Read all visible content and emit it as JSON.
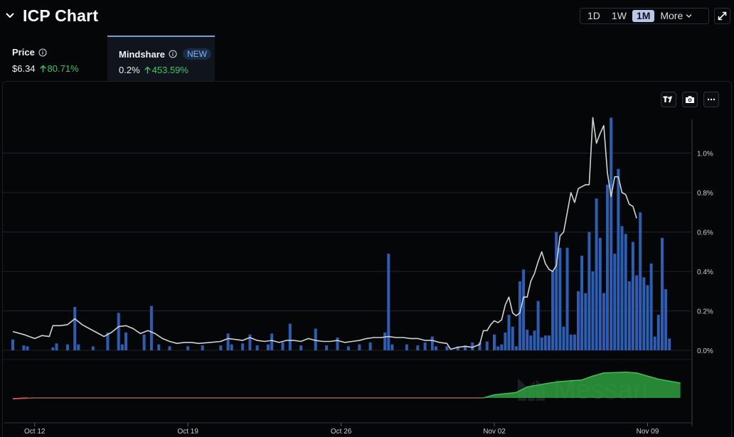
{
  "header": {
    "title": "ICP Chart",
    "ranges": [
      "1D",
      "1W",
      "1M"
    ],
    "active_range": "1M",
    "more_label": "More"
  },
  "tabs": [
    {
      "label": "Price",
      "value": "$6.34",
      "change": "80.71%"
    },
    {
      "label": "Mindshare",
      "badge": "NEW",
      "value": "0.2%",
      "change": "453.59%"
    }
  ],
  "watermark": "Messari",
  "colors": {
    "bars": "#2c5fb3",
    "line": "#d2d2d2",
    "positive": "#3cc46a",
    "area": "#2f9e3f",
    "negative": "#d9534f"
  },
  "icons": [
    "chevron-down-icon",
    "info-icon",
    "expand-icon",
    "tradingview-icon",
    "camera-icon",
    "more-icon"
  ],
  "chart_data": {
    "type": "bar",
    "y_axis": {
      "min": 0,
      "max": 1.2,
      "ticks": [
        0,
        0.2,
        0.4,
        0.6,
        0.8,
        1.0
      ],
      "tick_labels": [
        "0.0%",
        "0.2%",
        "0.4%",
        "0.6%",
        "0.8%",
        "1.0%"
      ],
      "position": "right"
    },
    "x_axis": {
      "start": "2024-10-11",
      "end": "2024-11-11",
      "tick_labels": [
        "Oct 12",
        "Oct 19",
        "Oct 26",
        "Nov 02",
        "Nov 09"
      ],
      "tick_dates": [
        "2024-10-12",
        "2024-10-19",
        "2024-10-26",
        "2024-11-02",
        "2024-11-09"
      ]
    },
    "grid": true,
    "bar_width_hours": 4,
    "series": [
      {
        "type": "bar",
        "points": [
          [
            "2024-10-11T00:00",
            0.055
          ],
          [
            "2024-10-11T12:00",
            0.025
          ],
          [
            "2024-10-11T16:00",
            0.02
          ],
          [
            "2024-10-12T20:00",
            0.015
          ],
          [
            "2024-10-13T00:00",
            0.035
          ],
          [
            "2024-10-13T12:00",
            0.03
          ],
          [
            "2024-10-13T20:00",
            0.22
          ],
          [
            "2024-10-14T00:00",
            0.03
          ],
          [
            "2024-10-14T16:00",
            0.02
          ],
          [
            "2024-10-15T08:00",
            0.09
          ],
          [
            "2024-10-15T20:00",
            0.19
          ],
          [
            "2024-10-16T00:00",
            0.03
          ],
          [
            "2024-10-16T04:00",
            0.09
          ],
          [
            "2024-10-17T00:00",
            0.08
          ],
          [
            "2024-10-17T08:00",
            0.225
          ],
          [
            "2024-10-17T16:00",
            0.03
          ],
          [
            "2024-10-18T04:00",
            0.02
          ],
          [
            "2024-10-19T00:00",
            0.02
          ],
          [
            "2024-10-19T16:00",
            0.025
          ],
          [
            "2024-10-20T12:00",
            0.025
          ],
          [
            "2024-10-20T20:00",
            0.085
          ],
          [
            "2024-10-21T00:00",
            0.03
          ],
          [
            "2024-10-21T12:00",
            0.035
          ],
          [
            "2024-10-21T20:00",
            0.08
          ],
          [
            "2024-10-22T04:00",
            0.025
          ],
          [
            "2024-10-22T16:00",
            0.03
          ],
          [
            "2024-10-22T20:00",
            0.085
          ],
          [
            "2024-10-23T08:00",
            0.04
          ],
          [
            "2024-10-23T16:00",
            0.135
          ],
          [
            "2024-10-24T04:00",
            0.025
          ],
          [
            "2024-10-24T20:00",
            0.11
          ],
          [
            "2024-10-25T08:00",
            0.025
          ],
          [
            "2024-10-25T20:00",
            0.065
          ],
          [
            "2024-10-26T08:00",
            0.02
          ],
          [
            "2024-10-26T20:00",
            0.03
          ],
          [
            "2024-10-27T08:00",
            0.04
          ],
          [
            "2024-10-28T00:00",
            0.09
          ],
          [
            "2024-10-28T04:00",
            0.49
          ],
          [
            "2024-10-28T08:00",
            0.03
          ],
          [
            "2024-10-29T00:00",
            0.03
          ],
          [
            "2024-10-29T12:00",
            0.025
          ],
          [
            "2024-10-29T20:00",
            0.04
          ],
          [
            "2024-10-30T04:00",
            0.07
          ],
          [
            "2024-10-30T08:00",
            0.02
          ],
          [
            "2024-10-30T20:00",
            0.02
          ],
          [
            "2024-10-31T08:00",
            0.02
          ],
          [
            "2024-10-31T16:00",
            0.025
          ],
          [
            "2024-11-01T00:00",
            0.04
          ],
          [
            "2024-11-01T08:00",
            0.04
          ],
          [
            "2024-11-01T16:00",
            0.045
          ],
          [
            "2024-11-02T00:00",
            0.08
          ],
          [
            "2024-11-02T04:00",
            0.02
          ],
          [
            "2024-11-02T08:00",
            0.03
          ],
          [
            "2024-11-02T12:00",
            0.09
          ],
          [
            "2024-11-02T16:00",
            0.18
          ],
          [
            "2024-11-02T20:00",
            0.12
          ],
          [
            "2024-11-03T00:00",
            0.02
          ],
          [
            "2024-11-03T04:00",
            0.35
          ],
          [
            "2024-11-03T08:00",
            0.41
          ],
          [
            "2024-11-03T12:00",
            0.105
          ],
          [
            "2024-11-03T16:00",
            0.075
          ],
          [
            "2024-11-03T20:00",
            0.1
          ],
          [
            "2024-11-04T00:00",
            0.25
          ],
          [
            "2024-11-04T04:00",
            0.065
          ],
          [
            "2024-11-04T08:00",
            0.075
          ],
          [
            "2024-11-04T12:00",
            0.075
          ],
          [
            "2024-11-04T16:00",
            0.4
          ],
          [
            "2024-11-04T20:00",
            0.6
          ],
          [
            "2024-11-05T00:00",
            0.52
          ],
          [
            "2024-11-05T04:00",
            0.12
          ],
          [
            "2024-11-05T08:00",
            0.52
          ],
          [
            "2024-11-05T12:00",
            0.08
          ],
          [
            "2024-11-05T16:00",
            0.08
          ],
          [
            "2024-11-05T20:00",
            0.3
          ],
          [
            "2024-11-06T00:00",
            0.48
          ],
          [
            "2024-11-06T04:00",
            0.29
          ],
          [
            "2024-11-06T08:00",
            0.6
          ],
          [
            "2024-11-06T12:00",
            0.4
          ],
          [
            "2024-11-06T16:00",
            0.77
          ],
          [
            "2024-11-06T20:00",
            0.57
          ],
          [
            "2024-11-07T00:00",
            0.29
          ],
          [
            "2024-11-07T04:00",
            0.84
          ],
          [
            "2024-11-07T08:00",
            1.18
          ],
          [
            "2024-11-07T12:00",
            0.49
          ],
          [
            "2024-11-07T16:00",
            0.92
          ],
          [
            "2024-11-07T20:00",
            0.63
          ],
          [
            "2024-11-08T00:00",
            0.59
          ],
          [
            "2024-11-08T04:00",
            0.35
          ],
          [
            "2024-11-08T08:00",
            0.55
          ],
          [
            "2024-11-08T12:00",
            0.38
          ],
          [
            "2024-11-08T16:00",
            0.7
          ],
          [
            "2024-11-08T20:00",
            0.37
          ],
          [
            "2024-11-09T00:00",
            0.33
          ],
          [
            "2024-11-09T04:00",
            0.44
          ],
          [
            "2024-11-09T08:00",
            0.07
          ],
          [
            "2024-11-09T12:00",
            0.18
          ],
          [
            "2024-11-09T16:00",
            0.57
          ],
          [
            "2024-11-09T20:00",
            0.31
          ],
          [
            "2024-11-10T00:00",
            0.06
          ]
        ]
      },
      {
        "type": "line",
        "points": [
          [
            "2024-10-11T00:00",
            0.095
          ],
          [
            "2024-10-11T12:00",
            0.08
          ],
          [
            "2024-10-12T00:00",
            0.06
          ],
          [
            "2024-10-12T08:00",
            0.075
          ],
          [
            "2024-10-12T16:00",
            0.07
          ],
          [
            "2024-10-12T20:00",
            0.125
          ],
          [
            "2024-10-13T04:00",
            0.125
          ],
          [
            "2024-10-13T12:00",
            0.13
          ],
          [
            "2024-10-13T20:00",
            0.16
          ],
          [
            "2024-10-14T04:00",
            0.13
          ],
          [
            "2024-10-14T12:00",
            0.11
          ],
          [
            "2024-10-14T20:00",
            0.09
          ],
          [
            "2024-10-15T04:00",
            0.07
          ],
          [
            "2024-10-15T12:00",
            0.09
          ],
          [
            "2024-10-15T20:00",
            0.12
          ],
          [
            "2024-10-16T04:00",
            0.125
          ],
          [
            "2024-10-16T12:00",
            0.11
          ],
          [
            "2024-10-16T20:00",
            0.085
          ],
          [
            "2024-10-17T04:00",
            0.1
          ],
          [
            "2024-10-17T12:00",
            0.085
          ],
          [
            "2024-10-17T20:00",
            0.06
          ],
          [
            "2024-10-18T04:00",
            0.045
          ],
          [
            "2024-10-18T12:00",
            0.035
          ],
          [
            "2024-10-18T20:00",
            0.04
          ],
          [
            "2024-10-19T04:00",
            0.04
          ],
          [
            "2024-10-19T12:00",
            0.035
          ],
          [
            "2024-10-20T00:00",
            0.04
          ],
          [
            "2024-10-20T12:00",
            0.045
          ],
          [
            "2024-10-20T20:00",
            0.06
          ],
          [
            "2024-10-21T04:00",
            0.055
          ],
          [
            "2024-10-21T12:00",
            0.05
          ],
          [
            "2024-10-21T20:00",
            0.065
          ],
          [
            "2024-10-22T04:00",
            0.05
          ],
          [
            "2024-10-22T12:00",
            0.045
          ],
          [
            "2024-10-22T20:00",
            0.05
          ],
          [
            "2024-10-23T04:00",
            0.04
          ],
          [
            "2024-10-23T12:00",
            0.05
          ],
          [
            "2024-10-23T20:00",
            0.05
          ],
          [
            "2024-10-24T04:00",
            0.045
          ],
          [
            "2024-10-24T12:00",
            0.06
          ],
          [
            "2024-10-24T20:00",
            0.05
          ],
          [
            "2024-10-25T04:00",
            0.045
          ],
          [
            "2024-10-25T12:00",
            0.045
          ],
          [
            "2024-10-25T20:00",
            0.05
          ],
          [
            "2024-10-26T04:00",
            0.04
          ],
          [
            "2024-10-26T12:00",
            0.045
          ],
          [
            "2024-10-26T20:00",
            0.05
          ],
          [
            "2024-10-27T04:00",
            0.06
          ],
          [
            "2024-10-27T12:00",
            0.065
          ],
          [
            "2024-10-27T20:00",
            0.065
          ],
          [
            "2024-10-28T04:00",
            0.07
          ],
          [
            "2024-10-28T12:00",
            0.065
          ],
          [
            "2024-10-28T20:00",
            0.065
          ],
          [
            "2024-10-29T04:00",
            0.06
          ],
          [
            "2024-10-29T12:00",
            0.06
          ],
          [
            "2024-10-29T20:00",
            0.05
          ],
          [
            "2024-10-30T04:00",
            0.05
          ],
          [
            "2024-10-30T12:00",
            0.04
          ],
          [
            "2024-10-30T20:00",
            0.035
          ],
          [
            "2024-10-31T00:00",
            0.005
          ],
          [
            "2024-10-31T08:00",
            0.015
          ],
          [
            "2024-10-31T16:00",
            0.02
          ],
          [
            "2024-11-01T00:00",
            0.015
          ],
          [
            "2024-11-01T08:00",
            0.03
          ],
          [
            "2024-11-01T12:00",
            0.1
          ],
          [
            "2024-11-01T16:00",
            0.1
          ],
          [
            "2024-11-01T20:00",
            0.13
          ],
          [
            "2024-11-02T00:00",
            0.15
          ],
          [
            "2024-11-02T04:00",
            0.14
          ],
          [
            "2024-11-02T08:00",
            0.155
          ],
          [
            "2024-11-02T12:00",
            0.23
          ],
          [
            "2024-11-02T16:00",
            0.27
          ],
          [
            "2024-11-02T20:00",
            0.19
          ],
          [
            "2024-11-03T00:00",
            0.175
          ],
          [
            "2024-11-03T04:00",
            0.19
          ],
          [
            "2024-11-03T08:00",
            0.27
          ],
          [
            "2024-11-03T12:00",
            0.27
          ],
          [
            "2024-11-03T16:00",
            0.35
          ],
          [
            "2024-11-03T20:00",
            0.39
          ],
          [
            "2024-11-04T00:00",
            0.45
          ],
          [
            "2024-11-04T04:00",
            0.5
          ],
          [
            "2024-11-04T08:00",
            0.44
          ],
          [
            "2024-11-04T12:00",
            0.41
          ],
          [
            "2024-11-04T16:00",
            0.4
          ],
          [
            "2024-11-04T20:00",
            0.43
          ],
          [
            "2024-11-05T00:00",
            0.58
          ],
          [
            "2024-11-05T04:00",
            0.6
          ],
          [
            "2024-11-05T08:00",
            0.7
          ],
          [
            "2024-11-05T12:00",
            0.8
          ],
          [
            "2024-11-05T16:00",
            0.75
          ],
          [
            "2024-11-05T20:00",
            0.82
          ],
          [
            "2024-11-06T00:00",
            0.83
          ],
          [
            "2024-11-06T04:00",
            0.84
          ],
          [
            "2024-11-06T08:00",
            0.84
          ],
          [
            "2024-11-06T12:00",
            1.18
          ],
          [
            "2024-11-06T16:00",
            1.05
          ],
          [
            "2024-11-06T20:00",
            1.1
          ],
          [
            "2024-11-07T00:00",
            1.14
          ],
          [
            "2024-11-07T04:00",
            0.9
          ],
          [
            "2024-11-07T08:00",
            0.78
          ],
          [
            "2024-11-07T12:00",
            0.88
          ],
          [
            "2024-11-07T16:00",
            0.88
          ],
          [
            "2024-11-07T20:00",
            0.8
          ],
          [
            "2024-11-08T00:00",
            0.79
          ],
          [
            "2024-11-08T04:00",
            0.74
          ],
          [
            "2024-11-08T08:00",
            0.73
          ],
          [
            "2024-11-08T12:00",
            0.67
          ]
        ]
      },
      {
        "type": "area",
        "points": [
          [
            "2024-10-11T00:00",
            -0.01
          ],
          [
            "2024-10-12T00:00",
            0
          ],
          [
            "2024-10-18T00:00",
            0
          ],
          [
            "2024-10-25T00:00",
            0
          ],
          [
            "2024-10-31T00:00",
            0
          ],
          [
            "2024-11-01T12:00",
            0
          ],
          [
            "2024-11-02T00:00",
            0.04
          ],
          [
            "2024-11-03T00:00",
            0.07
          ],
          [
            "2024-11-03T12:00",
            0.14
          ],
          [
            "2024-11-04T12:00",
            0.19
          ],
          [
            "2024-11-05T00:00",
            0.21
          ],
          [
            "2024-11-06T00:00",
            0.23
          ],
          [
            "2024-11-06T12:00",
            0.28
          ],
          [
            "2024-11-07T00:00",
            0.32
          ],
          [
            "2024-11-08T00:00",
            0.33
          ],
          [
            "2024-11-08T12:00",
            0.32
          ],
          [
            "2024-11-09T12:00",
            0.24
          ],
          [
            "2024-11-10T12:00",
            0.19
          ]
        ]
      }
    ]
  }
}
